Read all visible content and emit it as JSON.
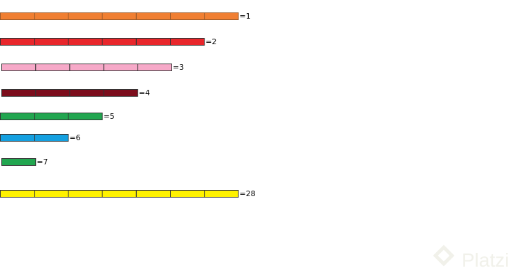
{
  "rows": [
    {
      "label": "=1",
      "segments": 7,
      "color": "#f07f32"
    },
    {
      "label": "=2",
      "segments": 6,
      "color": "#e8262b"
    },
    {
      "label": "=3",
      "segments": 5,
      "color": "#f6a9c8"
    },
    {
      "label": "=4",
      "segments": 4,
      "color": "#7c0d1c"
    },
    {
      "label": "=5",
      "segments": 3,
      "color": "#22a650"
    },
    {
      "label": "=6",
      "segments": 2,
      "color": "#14a0e0"
    },
    {
      "label": "=7",
      "segments": 1,
      "color": "#22a650"
    },
    {
      "label": "=28",
      "segments": 7,
      "color": "#fff200"
    }
  ],
  "watermark": "Platzi"
}
